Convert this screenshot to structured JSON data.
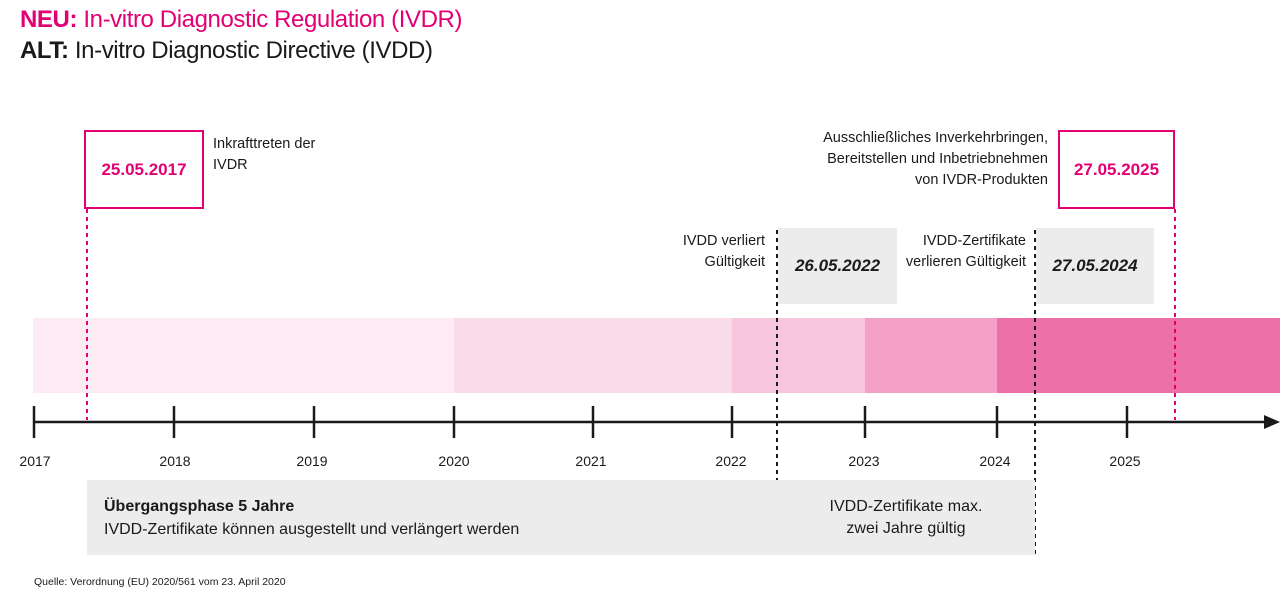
{
  "header": {
    "neu_key": "NEU:",
    "neu_text": "In-vitro Diagnostic Regulation (IVDR)",
    "alt_key": "ALT:",
    "alt_text": "In-vitro Diagnostic Directive (IVDD)"
  },
  "milestones": {
    "ivdr_start": {
      "date": "25.05.2017",
      "label_line1": "Inkrafttreten der",
      "label_line2": "IVDR"
    },
    "ivdr_exclusive": {
      "date": "27.05.2025",
      "label_line1": "Ausschließliches Inverkehrbringen,",
      "label_line2": "Bereitstellen und Inbetriebnehmen",
      "label_line3": "von IVDR-Produkten"
    },
    "ivdd_invalid": {
      "date": "26.05.2022",
      "label_line1": "IVDD verliert",
      "label_line2": "Gültigkeit"
    },
    "ivdd_cert_invalid": {
      "date": "27.05.2024",
      "label_line1": "IVDD-Zertifikate",
      "label_line2": "verlieren Gültigkeit"
    }
  },
  "timeline": {
    "years": [
      "2017",
      "2018",
      "2019",
      "2020",
      "2021",
      "2022",
      "2023",
      "2024",
      "2025"
    ],
    "segment_colors": [
      "#fcebf3",
      "#f9dbe9",
      "#f7c6dd",
      "#f2a0c6",
      "#ec6fa8"
    ]
  },
  "panels": {
    "transition_title": "Übergangsphase 5 Jahre",
    "transition_text": "IVDD-Zertifikate können ausgestellt und verlängert werden",
    "validity_line1": "IVDD-Zertifikate max.",
    "validity_line2": "zwei Jahre gültig"
  },
  "source": "Quelle: Verordnung (EU) 2020/561 vom 23. April 2020",
  "colors": {
    "accent": "#e20074",
    "text": "#1a1a1a",
    "grey_box": "#ececec"
  }
}
